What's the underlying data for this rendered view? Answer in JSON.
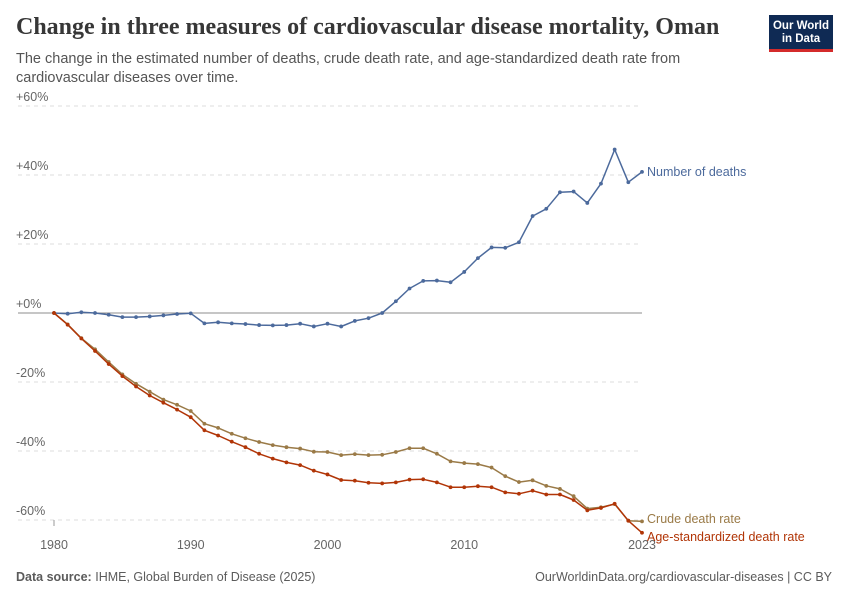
{
  "header": {
    "title": "Change in three measures of cardiovascular disease mortality, Oman",
    "subtitle": "The change in the estimated number of deaths, crude death rate, and age-standardized death rate from cardiovascular diseases over time.",
    "logo_line1": "Our World",
    "logo_line2": "in Data"
  },
  "footer": {
    "source_label": "Data source:",
    "source_text": "IHME, Global Burden of Disease (2025)",
    "url_text": "OurWorldinData.org/cardiovascular-diseases | CC BY"
  },
  "colors": {
    "number_of_deaths": "#4c6a9c",
    "crude_death_rate": "#9a7a47",
    "age_standardized": "#b13507"
  },
  "chart_data": {
    "type": "line",
    "x": [
      1980,
      1981,
      1982,
      1983,
      1984,
      1985,
      1986,
      1987,
      1988,
      1989,
      1990,
      1991,
      1992,
      1993,
      1994,
      1995,
      1996,
      1997,
      1998,
      1999,
      2000,
      2001,
      2002,
      2003,
      2004,
      2005,
      2006,
      2007,
      2008,
      2009,
      2010,
      2011,
      2012,
      2013,
      2014,
      2015,
      2016,
      2017,
      2018,
      2019,
      2020,
      2021,
      2022,
      2023
    ],
    "series": [
      {
        "name": "Number of deaths",
        "key": "number_of_deaths",
        "values": [
          0,
          -0.2,
          0.2,
          0,
          -0.5,
          -1.2,
          -1.2,
          -1,
          -0.7,
          -0.3,
          -0.1,
          -3,
          -2.7,
          -3,
          -3.2,
          -3.5,
          -3.6,
          -3.5,
          -3.1,
          -3.9,
          -3.1,
          -3.9,
          -2.3,
          -1.5,
          0,
          3.4,
          7.1,
          9.3,
          9.4,
          8.9,
          11.9,
          15.9,
          19,
          18.9,
          20.5,
          28.1,
          30.2,
          35,
          35.2,
          31.9,
          37.5,
          47.4,
          37.9,
          40.9
        ]
      },
      {
        "name": "Crude death rate",
        "key": "crude_death_rate",
        "values": [
          0,
          -3.3,
          -7.3,
          -10.5,
          -14.2,
          -17.8,
          -20.5,
          -22.8,
          -25.1,
          -26.6,
          -28.4,
          -32.1,
          -33.3,
          -35,
          -36.3,
          -37.4,
          -38.3,
          -38.9,
          -39.3,
          -40.2,
          -40.3,
          -41.2,
          -40.9,
          -41.2,
          -41.1,
          -40.3,
          -39.2,
          -39.2,
          -40.8,
          -43,
          -43.5,
          -43.8,
          -44.8,
          -47.3,
          -49,
          -48.5,
          -50.1,
          -51,
          -53.1,
          -56.7,
          -56.3,
          -55.4,
          -60.2,
          -60.4
        ]
      },
      {
        "name": "Age-standardized death rate",
        "key": "age_standardized",
        "values": [
          0,
          -3.4,
          -7.4,
          -11,
          -14.8,
          -18.3,
          -21.3,
          -23.9,
          -26,
          -28,
          -30.2,
          -34,
          -35.5,
          -37.3,
          -38.9,
          -40.8,
          -42.2,
          -43.3,
          -44.1,
          -45.7,
          -46.8,
          -48.4,
          -48.6,
          -49.2,
          -49.4,
          -49.1,
          -48.3,
          -48.2,
          -49.1,
          -50.5,
          -50.5,
          -50.2,
          -50.5,
          -52,
          -52.4,
          -51.5,
          -52.6,
          -52.6,
          -54.2,
          -57.2,
          -56.5,
          -55.3,
          -60.2,
          -63.7
        ]
      }
    ],
    "y_ticks": [
      -60,
      -40,
      -20,
      0,
      20,
      40,
      60
    ],
    "y_tick_labels": [
      "-60%",
      "-40%",
      "-20%",
      "+0%",
      "+20%",
      "+40%",
      "+60%"
    ],
    "x_ticks": [
      1980,
      1990,
      2000,
      2010,
      2023
    ],
    "x_tick_labels": [
      "1980",
      "1990",
      "2000",
      "2010",
      "2023"
    ],
    "ylim": [
      -60,
      60
    ],
    "xlim": [
      1980,
      2023
    ],
    "grid": "horizontal dashed",
    "legend": "inline labels at line ends"
  }
}
